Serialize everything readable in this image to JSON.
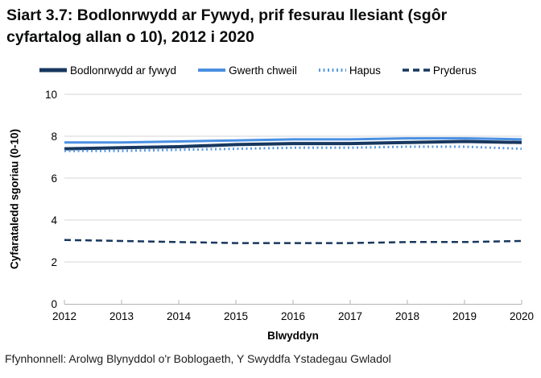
{
  "chart_data": {
    "type": "line",
    "title": "Siart 3.7: Bodlonrwydd ar Fywyd, prif fesurau llesiant (sgôr cyfartalog allan o 10), 2012 i 2020",
    "xlabel": "Blwyddyn",
    "ylabel": "Cyfarataledd sgoriau (0-10)",
    "source": "Ffynhonnell: Arolwg Blynyddol o'r Boblogaeth, Y Swyddfa Ystadegau Gwladol",
    "categories": [
      "2012",
      "2013",
      "2014",
      "2015",
      "2016",
      "2017",
      "2018",
      "2019",
      "2020"
    ],
    "ylim": [
      0,
      10
    ],
    "yticks": [
      0,
      2,
      4,
      6,
      8,
      10
    ],
    "grid": true,
    "grid_color": "#d4d4d4",
    "axis_color": "#b3b3b3",
    "legend_position": "top",
    "series": [
      {
        "name": "Bodlonrwydd ar fywyd",
        "values": [
          7.4,
          7.45,
          7.5,
          7.6,
          7.65,
          7.65,
          7.7,
          7.75,
          7.7
        ],
        "color": "#17375e",
        "line_style": "solid",
        "width": 4
      },
      {
        "name": "Gwerth chweil",
        "values": [
          7.7,
          7.7,
          7.75,
          7.8,
          7.85,
          7.85,
          7.9,
          7.9,
          7.85
        ],
        "color": "#4a90e2",
        "line_style": "solid",
        "width": 3
      },
      {
        "name": "Hapus",
        "values": [
          7.3,
          7.3,
          7.35,
          7.4,
          7.45,
          7.45,
          7.5,
          7.5,
          7.4
        ],
        "color": "#5b9be0",
        "line_style": "dotted",
        "width": 3
      },
      {
        "name": "Pryderus",
        "values": [
          3.05,
          3.0,
          2.95,
          2.9,
          2.9,
          2.9,
          2.95,
          2.95,
          3.0
        ],
        "color": "#17375e",
        "line_style": "dashed",
        "width": 2.5
      }
    ]
  }
}
